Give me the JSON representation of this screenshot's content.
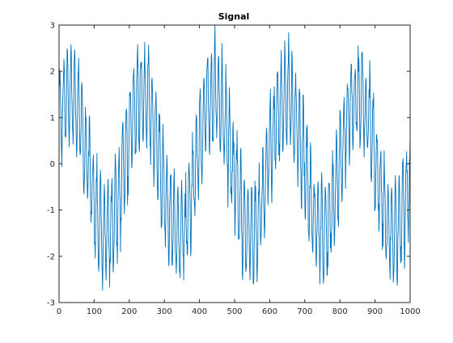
{
  "colors": {
    "series": "#0072bd",
    "axes": "#262626",
    "background": "#ffffff"
  },
  "chart_data": {
    "type": "line",
    "title": "Signal",
    "xlabel": "",
    "ylabel": "",
    "xlim": [
      0,
      1000
    ],
    "ylim": [
      -3,
      3
    ],
    "x_ticks": [
      0,
      100,
      200,
      300,
      400,
      500,
      600,
      700,
      800,
      900,
      1000
    ],
    "y_ticks": [
      -3,
      -2,
      -1,
      0,
      1,
      2,
      3
    ],
    "grid": false,
    "legend": "none",
    "series": [
      {
        "x_start": 1,
        "x_step": 1,
        "x_end": 1000,
        "components": [
          {
            "kind": "sine",
            "amplitude": 1.5,
            "period": 205,
            "phase": 0.6
          },
          {
            "kind": "sine",
            "amplitude": 1.0,
            "period": 10.5,
            "phase": 0.0
          },
          {
            "kind": "noise",
            "std": 0.22
          }
        ],
        "y_range_observed": [
          -2.85,
          2.95
        ]
      }
    ]
  }
}
